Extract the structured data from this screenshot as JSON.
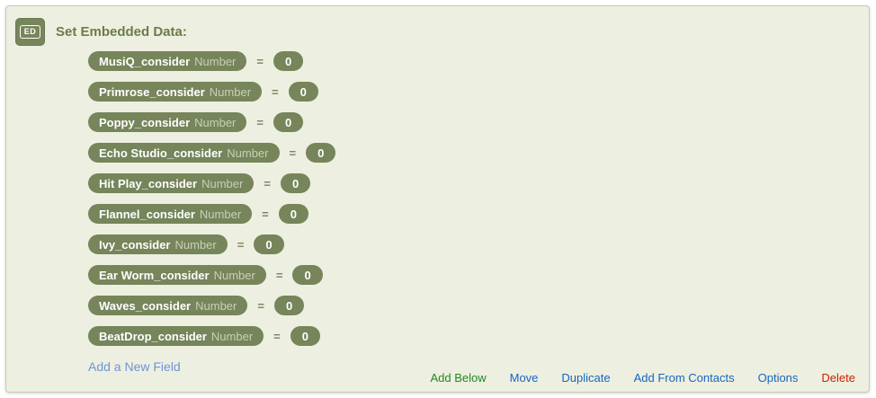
{
  "panel": {
    "icon_label": "ED",
    "title": "Set Embedded Data:",
    "equals_sign": "=",
    "fields": [
      {
        "name": "MusiQ_consider",
        "type": "Number",
        "value": "0"
      },
      {
        "name": "Primrose_consider",
        "type": "Number",
        "value": "0"
      },
      {
        "name": "Poppy_consider",
        "type": "Number",
        "value": "0"
      },
      {
        "name": "Echo Studio_consider",
        "type": "Number",
        "value": "0"
      },
      {
        "name": "Hit Play_consider",
        "type": "Number",
        "value": "0"
      },
      {
        "name": "Flannel_consider",
        "type": "Number",
        "value": "0"
      },
      {
        "name": "Ivy_consider",
        "type": "Number",
        "value": "0"
      },
      {
        "name": "Ear Worm_consider",
        "type": "Number",
        "value": "0"
      },
      {
        "name": "Waves_consider",
        "type": "Number",
        "value": "0"
      },
      {
        "name": "BeatDrop_consider",
        "type": "Number",
        "value": "0"
      }
    ],
    "add_field_label": "Add a New Field"
  },
  "footer": {
    "actions": [
      {
        "label": "Add Below",
        "color": "#1e8a1e"
      },
      {
        "label": "Move",
        "color": "#1666c1"
      },
      {
        "label": "Duplicate",
        "color": "#1666c1"
      },
      {
        "label": "Add From Contacts",
        "color": "#1666c1"
      },
      {
        "label": "Options",
        "color": "#1666c1"
      },
      {
        "label": "Delete",
        "color": "#cc2200"
      }
    ]
  },
  "colors": {
    "panel_bg": "#edefe0",
    "panel_border": "#c8cbb8",
    "pill_bg": "#76855a",
    "pill_type_text": "#c9d0b7",
    "title_text": "#6b7c49",
    "equals_text": "#76855a",
    "add_field_link": "#7094d6"
  }
}
